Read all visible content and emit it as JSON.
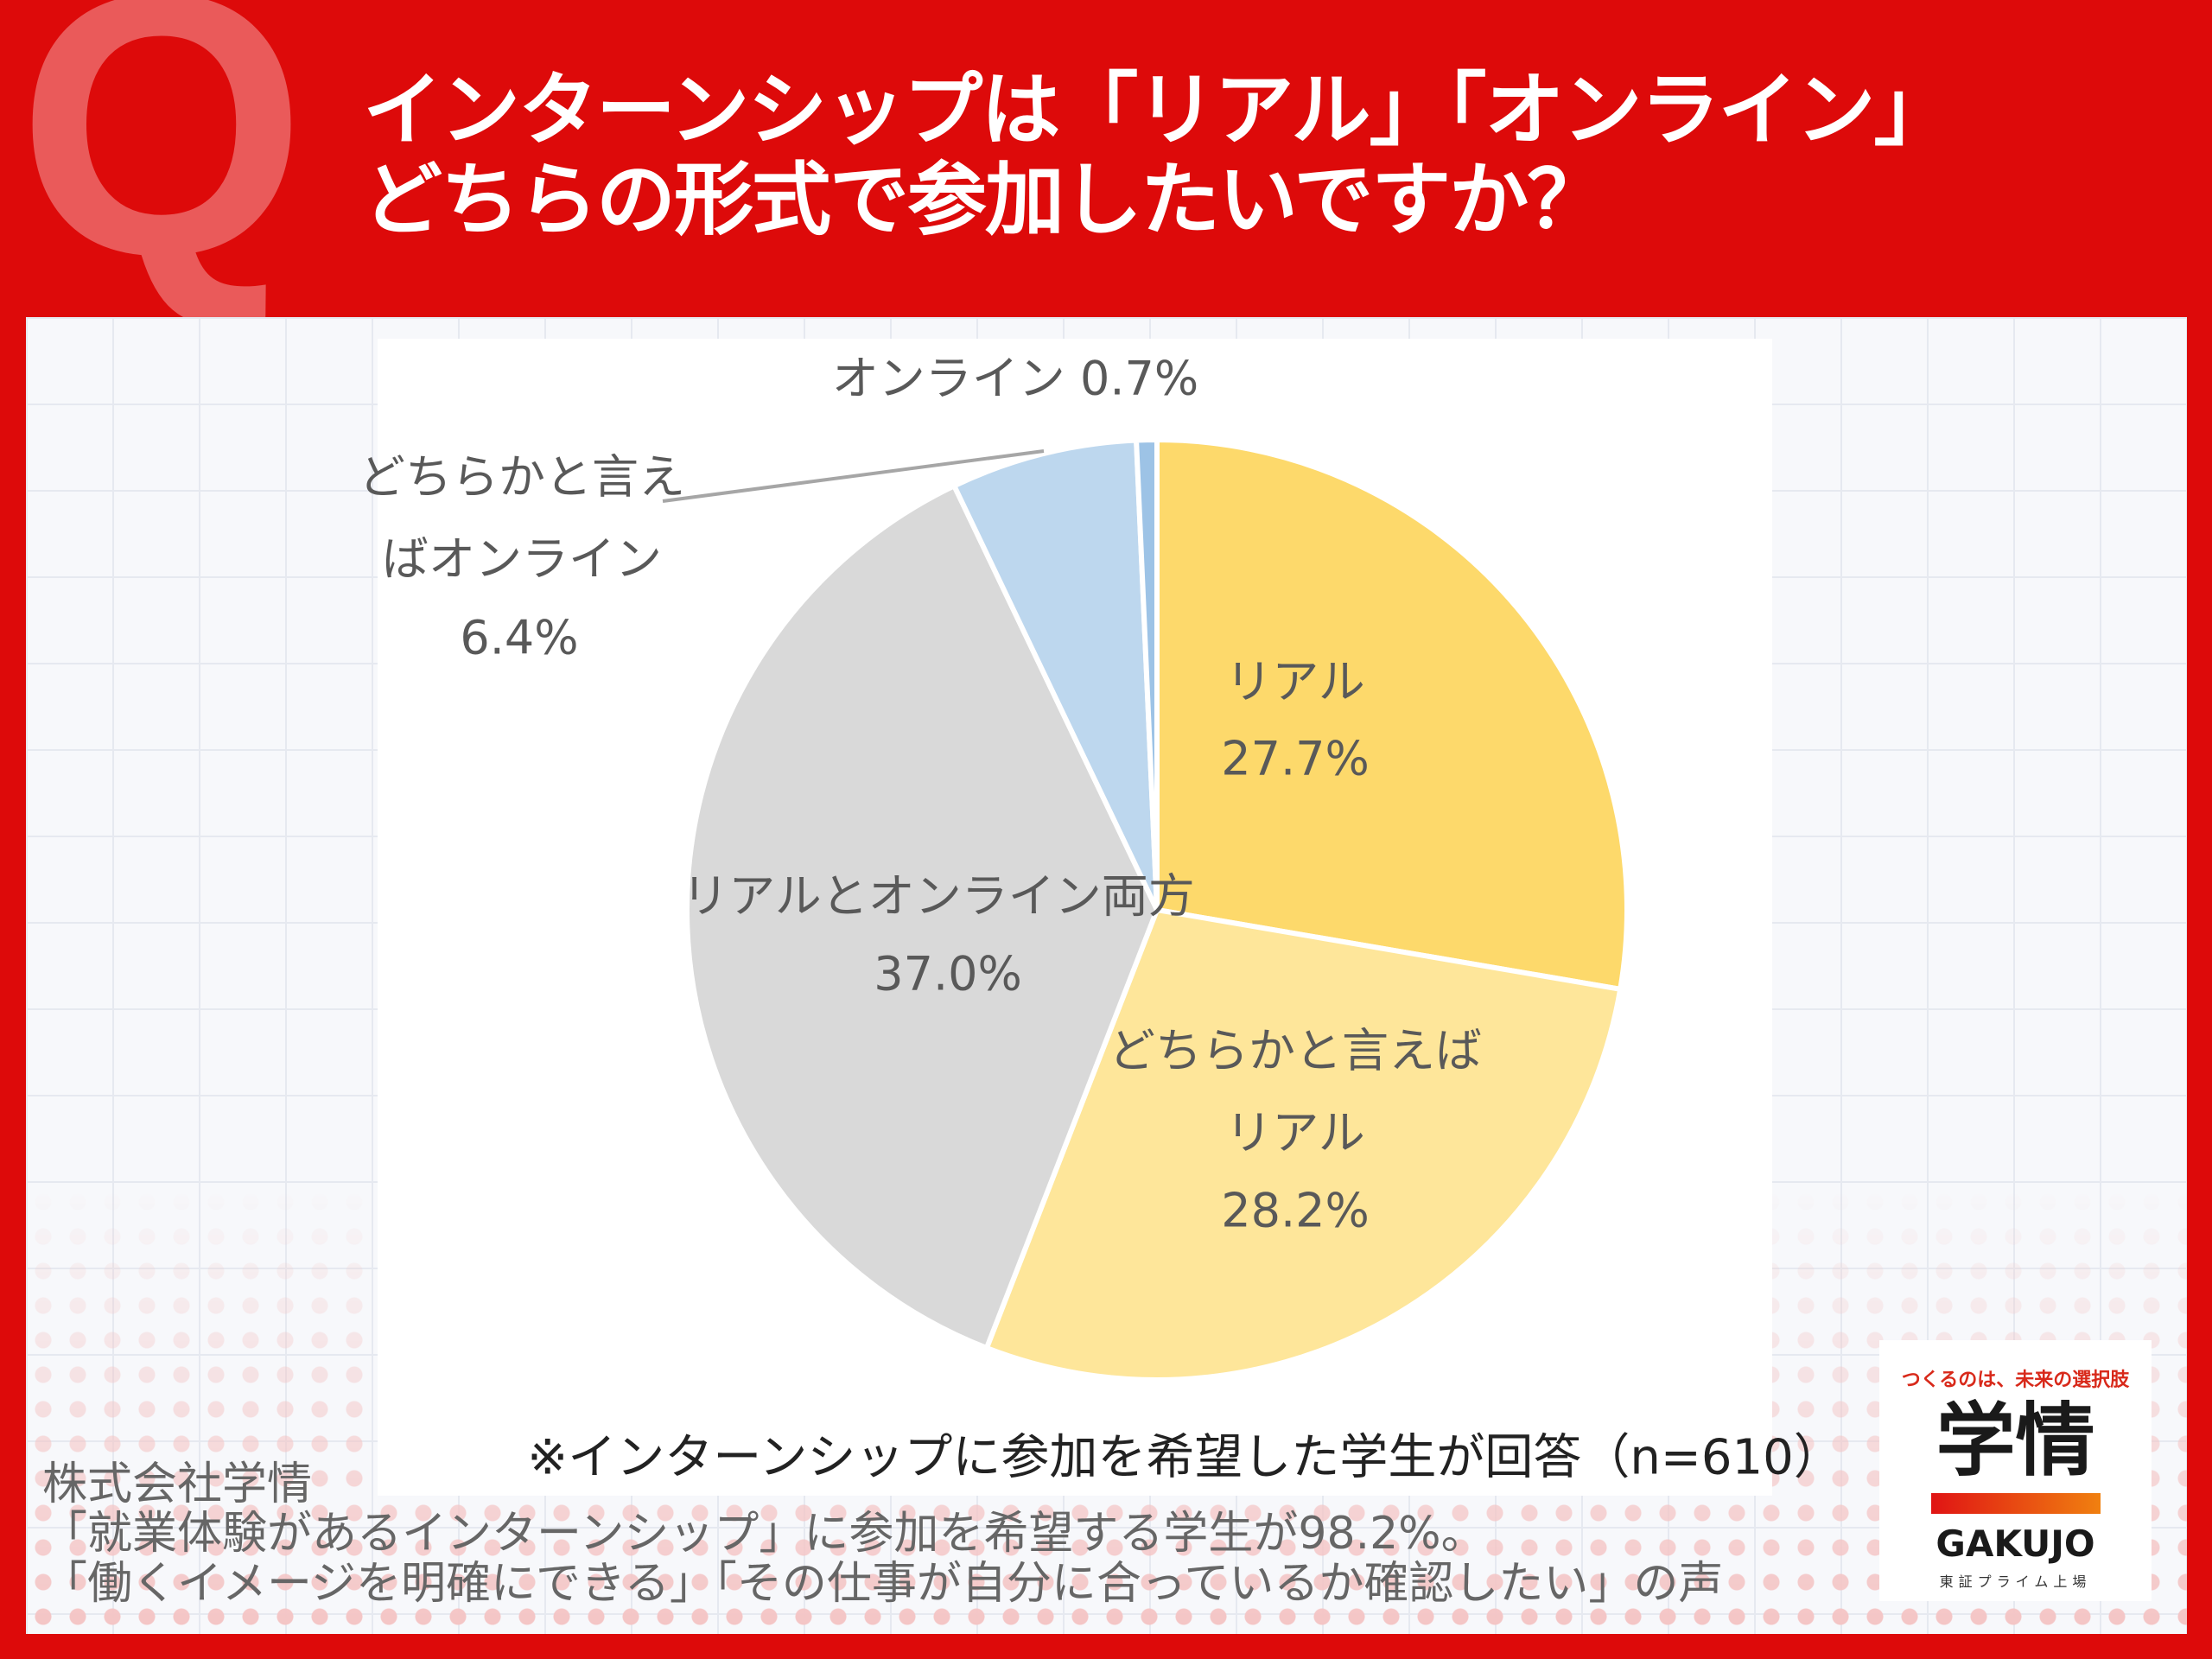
{
  "header": {
    "q_mark": "Q",
    "title_lines": [
      "インターンシップは「リアル」「オンライン」",
      "どちらの形式で参加したいですか？"
    ]
  },
  "chart_data": {
    "type": "pie",
    "title": "インターンシップは「リアル」「オンライン」どちらの形式で参加したいですか？",
    "start": "top",
    "direction": "clockwise",
    "slices": [
      {
        "label": "リアル",
        "label_lines": [
          "リアル"
        ],
        "value": 27.7,
        "value_label": "27.7%",
        "color": "#fdd96b"
      },
      {
        "label": "どちらかと言えばリアル",
        "label_lines": [
          "どちらかと言えば",
          "リアル"
        ],
        "value": 28.2,
        "value_label": "28.2%",
        "color": "#fee69a"
      },
      {
        "label": "リアルとオンライン両方",
        "label_lines": [
          "リアルとオンライン両方"
        ],
        "value": 37.0,
        "value_label": "37.0%",
        "color": "#d9d9d9"
      },
      {
        "label": "どちらかと言えばオンライン",
        "label_lines": [
          "どちらかと言え",
          "ばオンライン"
        ],
        "value": 6.4,
        "value_label": "6.4%",
        "color": "#bdd7ee"
      },
      {
        "label": "オンライン",
        "label_lines": [
          "オンライン"
        ],
        "value": 0.7,
        "value_label": "0.7%",
        "color": "#9dc3e6"
      }
    ],
    "note": "※インターンシップに参加を希望した学生が回答（n=610）"
  },
  "footer": {
    "lines": [
      "株式会社学情",
      "「就業体験があるインターンシップ」に参加を希望する学生が98.2%。",
      "「働くイメージを明確にできる」「その仕事が自分に合っているか確認したい」の声"
    ]
  },
  "logo": {
    "tagline": "つくるのは、未来の選択肢",
    "kanji": "学情",
    "name": "GAKUJO",
    "sub": "東証プライム上場"
  }
}
